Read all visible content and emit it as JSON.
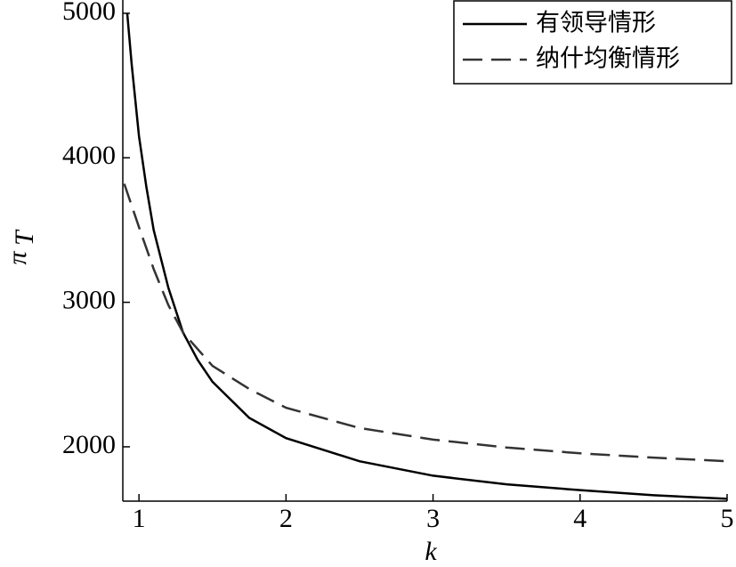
{
  "chart_data": {
    "type": "line",
    "xlabel": "k",
    "ylabel": "π",
    "ylabel_sub": "T",
    "xlim": [
      0.89,
      5
    ],
    "ylim": [
      1624,
      5092
    ],
    "xticks": [
      1,
      2,
      3,
      4,
      5
    ],
    "yticks": [
      2000,
      3000,
      4000,
      5000
    ],
    "legend": "top-right",
    "series": [
      {
        "name": "有领导情形",
        "color": "#000000",
        "dashed": false,
        "x": [
          0.92,
          0.95,
          1.0,
          1.05,
          1.1,
          1.2,
          1.3,
          1.4,
          1.5,
          1.75,
          2,
          2.5,
          3,
          3.5,
          4,
          4.5,
          5
        ],
        "values": [
          5000,
          4650,
          4150,
          3800,
          3500,
          3100,
          2790,
          2600,
          2450,
          2200,
          2060,
          1900,
          1800,
          1740,
          1700,
          1665,
          1640
        ]
      },
      {
        "name": "纳什均衡情形",
        "color": "#333333",
        "dashed": true,
        "x": [
          0.9,
          1.0,
          1.1,
          1.2,
          1.3,
          1.5,
          1.75,
          2,
          2.5,
          3,
          3.5,
          4,
          4.5,
          5
        ],
        "values": [
          3820,
          3520,
          3230,
          2980,
          2790,
          2560,
          2400,
          2270,
          2130,
          2050,
          1995,
          1955,
          1925,
          1900
        ]
      }
    ]
  }
}
